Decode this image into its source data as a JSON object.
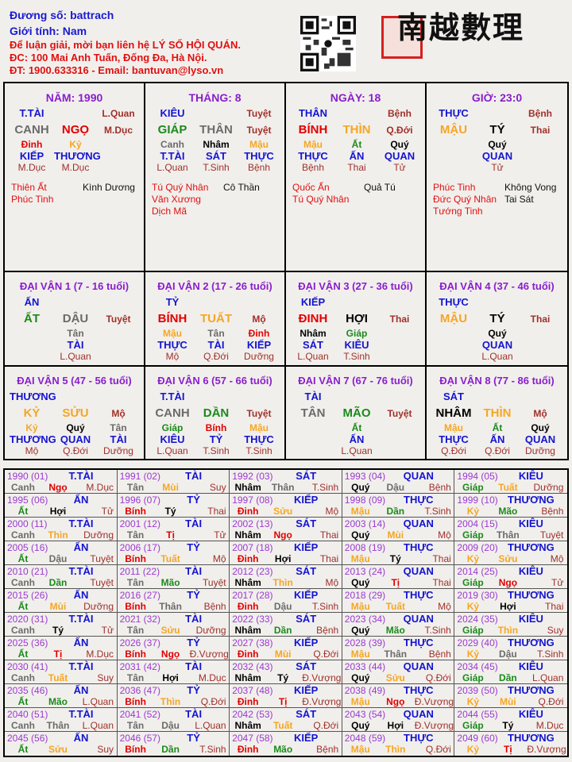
{
  "header": {
    "line1": "Đương số: battrach",
    "line2": "Giới tính:   Nam",
    "line3": "Để luận giải, mời bạn liên hệ LÝ SỐ HỘI QUÁN.",
    "line4": "ĐC: 100 Mai Anh Tuấn, Đống Đa, Hà Nội.",
    "line5": "ĐT: 1900.633316 - Email: bantuvan@lyso.vn",
    "logo_text": "南越數理"
  },
  "colors": {
    "kim": "#6b6b6b",
    "hoa": "#e00000",
    "tho": "#f5a623",
    "moc": "#1a8a1a",
    "thuy": "#000000",
    "title": "#8a1ecc",
    "god": "#1414d0",
    "stage": "#a0302a"
  },
  "pillars": [
    {
      "title": "NĂM: 1990",
      "god": "T.TÀI",
      "stage1": "L.Quan",
      "stem": "CANH",
      "branch": "NGỌ",
      "stage2": "M.Dục",
      "hidden": [
        {
          "s": "Đinh",
          "g": "KIẾP",
          "t": "M.Dục"
        },
        {
          "s": "Kỷ",
          "g": "THƯƠNG",
          "t": "M.Dục"
        }
      ],
      "ss_red": [
        "Thiên Ất",
        "Phúc Tinh"
      ],
      "ss_black": [
        "Kình Dương"
      ]
    },
    {
      "title": "THÁNG: 8",
      "god": "KIÊU",
      "stage1": "Tuyệt",
      "stem": "GIÁP",
      "branch": "THÂN",
      "stage2": "Tuyệt",
      "hidden": [
        {
          "s": "Canh",
          "g": "T.TÀI",
          "t": "L.Quan"
        },
        {
          "s": "Nhâm",
          "g": "SÁT",
          "t": "T.Sinh"
        },
        {
          "s": "Mậu",
          "g": "THỰC",
          "t": "Bệnh"
        }
      ],
      "ss_red": [
        "Tú Quý Nhân",
        "Văn Xương",
        "Dịch Mã"
      ],
      "ss_black": [
        "Cô Thần"
      ]
    },
    {
      "title": "NGÀY: 18",
      "god": "THÂN",
      "stage1": "Bệnh",
      "stem": "BÍNH",
      "branch": "THÌN",
      "stage2": "Q.Đới",
      "hidden": [
        {
          "s": "Mậu",
          "g": "THỰC",
          "t": "Bệnh"
        },
        {
          "s": "Ất",
          "g": "ẤN",
          "t": "Thai"
        },
        {
          "s": "Quý",
          "g": "QUAN",
          "t": "Tử"
        }
      ],
      "ss_red": [
        "Quốc Ấn",
        "Tú Quý Nhân"
      ],
      "ss_black": [
        "Quả Tú"
      ]
    },
    {
      "title": "GIỜ: 23:0",
      "god": "THỰC",
      "stage1": "Bệnh",
      "stem": "MẬU",
      "branch": "TÝ",
      "stage2": "Thai",
      "hidden": [
        {
          "s": "Quý",
          "g": "QUAN",
          "t": "Tử"
        }
      ],
      "ss_red": [
        "Phúc Tinh",
        "Đức Quý Nhân",
        "Tướng Tinh"
      ],
      "ss_black": [
        "Không Vong",
        "Tai Sát"
      ]
    }
  ],
  "dai_van": [
    {
      "title": "ĐẠI VẬN 1 (7 - 16 tuổi)",
      "god": "ẤN",
      "stem": "ẤT",
      "branch": "DẬU",
      "stage": "Tuyệt",
      "hidden": [
        {
          "s": "Tân",
          "g": "TÀI",
          "t": "L.Quan"
        }
      ]
    },
    {
      "title": "ĐẠI VẬN 2 (17 - 26 tuổi)",
      "god": "TỶ",
      "stem": "BÍNH",
      "branch": "TUẤT",
      "stage": "Mộ",
      "hidden": [
        {
          "s": "Mậu",
          "g": "THỰC",
          "t": "Mộ"
        },
        {
          "s": "Tân",
          "g": "TÀI",
          "t": "Q.Đới"
        },
        {
          "s": "Đinh",
          "g": "KIẾP",
          "t": "Dưỡng"
        }
      ]
    },
    {
      "title": "ĐẠI VẬN 3 (27 - 36 tuổi)",
      "god": "KIẾP",
      "stem": "ĐINH",
      "branch": "HỢI",
      "stage": "Thai",
      "hidden": [
        {
          "s": "Nhâm",
          "g": "SÁT",
          "t": "L.Quan"
        },
        {
          "s": "Giáp",
          "g": "KIÊU",
          "t": "T.Sinh"
        }
      ]
    },
    {
      "title": "ĐẠI VẬN 4 (37 - 46 tuổi)",
      "god": "THỰC",
      "stem": "MẬU",
      "branch": "TÝ",
      "stage": "Thai",
      "hidden": [
        {
          "s": "Quý",
          "g": "QUAN",
          "t": "L.Quan"
        }
      ]
    },
    {
      "title": "ĐẠI VẬN 5 (47 - 56 tuổi)",
      "god": "THƯƠNG",
      "stem": "KỶ",
      "branch": "SỬU",
      "stage": "Mộ",
      "hidden": [
        {
          "s": "Kỷ",
          "g": "THƯƠNG",
          "t": "Mộ"
        },
        {
          "s": "Quý",
          "g": "QUAN",
          "t": "Q.Đới"
        },
        {
          "s": "Tân",
          "g": "TÀI",
          "t": "Dưỡng"
        }
      ]
    },
    {
      "title": "ĐẠI VẬN 6 (57 - 66 tuổi)",
      "god": "T.TÀI",
      "stem": "CANH",
      "branch": "DẦN",
      "stage": "Tuyệt",
      "hidden": [
        {
          "s": "Giáp",
          "g": "KIÊU",
          "t": "L.Quan"
        },
        {
          "s": "Bính",
          "g": "TỶ",
          "t": "T.Sinh"
        },
        {
          "s": "Mậu",
          "g": "THỰC",
          "t": "T.Sinh"
        }
      ]
    },
    {
      "title": "ĐẠI VẬN 7 (67 - 76 tuổi)",
      "god": "TÀI",
      "stem": "TÂN",
      "branch": "MÃO",
      "stage": "Tuyệt",
      "hidden": [
        {
          "s": "Ất",
          "g": "ẤN",
          "t": "L.Quan"
        }
      ]
    },
    {
      "title": "ĐẠI VẬN 8 (77 - 86 tuổi)",
      "god": "SÁT",
      "stem": "NHÂM",
      "branch": "THÌN",
      "stage": "Mộ",
      "hidden": [
        {
          "s": "Mậu",
          "g": "THỰC",
          "t": "Q.Đới"
        },
        {
          "s": "Ất",
          "g": "ẤN",
          "t": "Q.Đới"
        },
        {
          "s": "Quý",
          "g": "QUAN",
          "t": "Dưỡng"
        }
      ]
    }
  ],
  "years": [
    {
      "y": "1990 (01)",
      "g": "T.TÀI",
      "s": "Canh",
      "b": "Ngọ",
      "t": "M.Dục"
    },
    {
      "y": "1991 (02)",
      "g": "TÀI",
      "s": "Tân",
      "b": "Mùi",
      "t": "Suy"
    },
    {
      "y": "1992 (03)",
      "g": "SÁT",
      "s": "Nhâm",
      "b": "Thân",
      "t": "T.Sinh"
    },
    {
      "y": "1993 (04)",
      "g": "QUAN",
      "s": "Quý",
      "b": "Dậu",
      "t": "Bệnh"
    },
    {
      "y": "1994 (05)",
      "g": "KIÊU",
      "s": "Giáp",
      "b": "Tuất",
      "t": "Dưỡng"
    },
    {
      "y": "1995 (06)",
      "g": "ẤN",
      "s": "Ất",
      "b": "Hợi",
      "t": "Tử"
    },
    {
      "y": "1996 (07)",
      "g": "TỶ",
      "s": "Bính",
      "b": "Tý",
      "t": "Thai"
    },
    {
      "y": "1997 (08)",
      "g": "KIẾP",
      "s": "Đinh",
      "b": "Sửu",
      "t": "Mộ"
    },
    {
      "y": "1998 (09)",
      "g": "THỰC",
      "s": "Mậu",
      "b": "Dần",
      "t": "T.Sinh"
    },
    {
      "y": "1999 (10)",
      "g": "THƯƠNG",
      "s": "Kỷ",
      "b": "Mão",
      "t": "Bệnh"
    },
    {
      "y": "2000 (11)",
      "g": "T.TÀI",
      "s": "Canh",
      "b": "Thìn",
      "t": "Dưỡng"
    },
    {
      "y": "2001 (12)",
      "g": "TÀI",
      "s": "Tân",
      "b": "Tị",
      "t": "Tử"
    },
    {
      "y": "2002 (13)",
      "g": "SÁT",
      "s": "Nhâm",
      "b": "Ngọ",
      "t": "Thai"
    },
    {
      "y": "2003 (14)",
      "g": "QUAN",
      "s": "Quý",
      "b": "Mùi",
      "t": "Mộ"
    },
    {
      "y": "2004 (15)",
      "g": "KIÊU",
      "s": "Giáp",
      "b": "Thân",
      "t": "Tuyệt"
    },
    {
      "y": "2005 (16)",
      "g": "ẤN",
      "s": "Ất",
      "b": "Dậu",
      "t": "Tuyệt"
    },
    {
      "y": "2006 (17)",
      "g": "TỶ",
      "s": "Bính",
      "b": "Tuất",
      "t": "Mộ"
    },
    {
      "y": "2007 (18)",
      "g": "KIẾP",
      "s": "Đinh",
      "b": "Hợi",
      "t": "Thai"
    },
    {
      "y": "2008 (19)",
      "g": "THỰC",
      "s": "Mậu",
      "b": "Tý",
      "t": "Thai"
    },
    {
      "y": "2009 (20)",
      "g": "THƯƠNG",
      "s": "Kỷ",
      "b": "Sửu",
      "t": "Mộ"
    },
    {
      "y": "2010 (21)",
      "g": "T.TÀI",
      "s": "Canh",
      "b": "Dần",
      "t": "Tuyệt"
    },
    {
      "y": "2011 (22)",
      "g": "TÀI",
      "s": "Tân",
      "b": "Mão",
      "t": "Tuyệt"
    },
    {
      "y": "2012 (23)",
      "g": "SÁT",
      "s": "Nhâm",
      "b": "Thìn",
      "t": "Mộ"
    },
    {
      "y": "2013 (24)",
      "g": "QUAN",
      "s": "Quý",
      "b": "Tị",
      "t": "Thai"
    },
    {
      "y": "2014 (25)",
      "g": "KIÊU",
      "s": "Giáp",
      "b": "Ngọ",
      "t": "Tử"
    },
    {
      "y": "2015 (26)",
      "g": "ẤN",
      "s": "Ất",
      "b": "Mùi",
      "t": "Dưỡng"
    },
    {
      "y": "2016 (27)",
      "g": "TỶ",
      "s": "Bính",
      "b": "Thân",
      "t": "Bệnh"
    },
    {
      "y": "2017 (28)",
      "g": "KIẾP",
      "s": "Đinh",
      "b": "Dậu",
      "t": "T.Sinh"
    },
    {
      "y": "2018 (29)",
      "g": "THỰC",
      "s": "Mậu",
      "b": "Tuất",
      "t": "Mộ"
    },
    {
      "y": "2019 (30)",
      "g": "THƯƠNG",
      "s": "Kỷ",
      "b": "Hợi",
      "t": "Thai"
    },
    {
      "y": "2020 (31)",
      "g": "T.TÀI",
      "s": "Canh",
      "b": "Tý",
      "t": "Tử"
    },
    {
      "y": "2021 (32)",
      "g": "TÀI",
      "s": "Tân",
      "b": "Sửu",
      "t": "Dưỡng"
    },
    {
      "y": "2022 (33)",
      "g": "SÁT",
      "s": "Nhâm",
      "b": "Dần",
      "t": "Bệnh"
    },
    {
      "y": "2023 (34)",
      "g": "QUAN",
      "s": "Quý",
      "b": "Mão",
      "t": "T.Sinh"
    },
    {
      "y": "2024 (35)",
      "g": "KIÊU",
      "s": "Giáp",
      "b": "Thìn",
      "t": "Suy"
    },
    {
      "y": "2025 (36)",
      "g": "ẤN",
      "s": "Ất",
      "b": "Tị",
      "t": "M.Dục"
    },
    {
      "y": "2026 (37)",
      "g": "TỶ",
      "s": "Bính",
      "b": "Ngọ",
      "t": "Đ.Vượng"
    },
    {
      "y": "2027 (38)",
      "g": "KIẾP",
      "s": "Đinh",
      "b": "Mùi",
      "t": "Q.Đới"
    },
    {
      "y": "2028 (39)",
      "g": "THỰC",
      "s": "Mậu",
      "b": "Thân",
      "t": "Bệnh"
    },
    {
      "y": "2029 (40)",
      "g": "THƯƠNG",
      "s": "Kỷ",
      "b": "Dậu",
      "t": "T.Sinh"
    },
    {
      "y": "2030 (41)",
      "g": "T.TÀI",
      "s": "Canh",
      "b": "Tuất",
      "t": "Suy"
    },
    {
      "y": "2031 (42)",
      "g": "TÀI",
      "s": "Tân",
      "b": "Hợi",
      "t": "M.Dục"
    },
    {
      "y": "2032 (43)",
      "g": "SÁT",
      "s": "Nhâm",
      "b": "Tý",
      "t": "Đ.Vượng"
    },
    {
      "y": "2033 (44)",
      "g": "QUAN",
      "s": "Quý",
      "b": "Sửu",
      "t": "Q.Đới"
    },
    {
      "y": "2034 (45)",
      "g": "KIÊU",
      "s": "Giáp",
      "b": "Dần",
      "t": "L.Quan"
    },
    {
      "y": "2035 (46)",
      "g": "ẤN",
      "s": "Ất",
      "b": "Mão",
      "t": "L.Quan"
    },
    {
      "y": "2036 (47)",
      "g": "TỶ",
      "s": "Bính",
      "b": "Thìn",
      "t": "Q.Đới"
    },
    {
      "y": "2037 (48)",
      "g": "KIẾP",
      "s": "Đinh",
      "b": "Tị",
      "t": "Đ.Vượng"
    },
    {
      "y": "2038 (49)",
      "g": "THỰC",
      "s": "Mậu",
      "b": "Ngọ",
      "t": "Đ.Vượng"
    },
    {
      "y": "2039 (50)",
      "g": "THƯƠNG",
      "s": "Kỷ",
      "b": "Mùi",
      "t": "Q.Đới"
    },
    {
      "y": "2040 (51)",
      "g": "T.TÀI",
      "s": "Canh",
      "b": "Thân",
      "t": "L.Quan"
    },
    {
      "y": "2041 (52)",
      "g": "TÀI",
      "s": "Tân",
      "b": "Dậu",
      "t": "L.Quan"
    },
    {
      "y": "2042 (53)",
      "g": "SÁT",
      "s": "Nhâm",
      "b": "Tuất",
      "t": "Q.Đới"
    },
    {
      "y": "2043 (54)",
      "g": "QUAN",
      "s": "Quý",
      "b": "Hợi",
      "t": "Đ.Vượng"
    },
    {
      "y": "2044 (55)",
      "g": "KIÊU",
      "s": "Giáp",
      "b": "Tý",
      "t": "M.Dục"
    },
    {
      "y": "2045 (56)",
      "g": "ẤN",
      "s": "Ất",
      "b": "Sửu",
      "t": "Suy"
    },
    {
      "y": "2046 (57)",
      "g": "TỶ",
      "s": "Bính",
      "b": "Dần",
      "t": "T.Sinh"
    },
    {
      "y": "2047 (58)",
      "g": "KIẾP",
      "s": "Đinh",
      "b": "Mão",
      "t": "Bệnh"
    },
    {
      "y": "2048 (59)",
      "g": "THỰC",
      "s": "Mậu",
      "b": "Thìn",
      "t": "Q.Đới"
    },
    {
      "y": "2049 (60)",
      "g": "THƯƠNG",
      "s": "Kỷ",
      "b": "Tị",
      "t": "Đ.Vượng"
    }
  ]
}
